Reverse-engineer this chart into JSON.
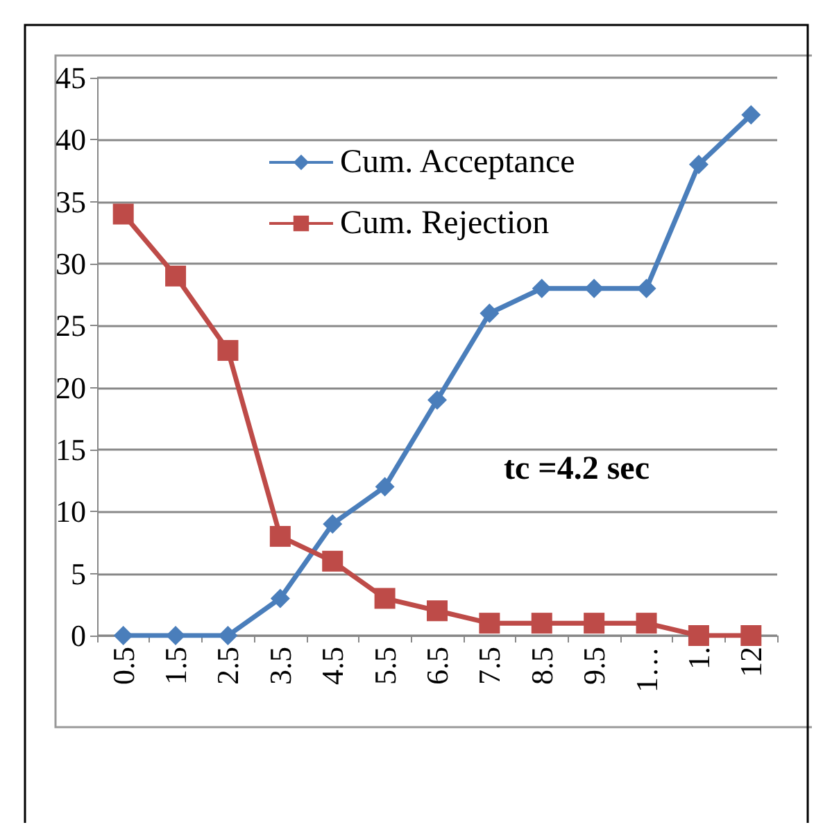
{
  "chart_data": {
    "type": "line",
    "categories": [
      "0.5",
      "1.5",
      "2.5",
      "3.5",
      "4.5",
      "5.5",
      "6.5",
      "7.5",
      "8.5",
      "9.5",
      "1…",
      "1.",
      "12"
    ],
    "series": [
      {
        "name": "Cum. Acceptance",
        "color": "#4a7ebb",
        "marker": "diamond",
        "values": [
          0,
          0,
          0,
          3,
          9,
          12,
          19,
          26,
          28,
          28,
          28,
          38,
          42
        ]
      },
      {
        "name": "Cum. Rejection",
        "color": "#be4b48",
        "marker": "square",
        "values": [
          34,
          29,
          23,
          8,
          6,
          3,
          2,
          1,
          1,
          1,
          1,
          0,
          0
        ]
      }
    ],
    "ylim": [
      0,
      45
    ],
    "yticks": [
      0,
      5,
      10,
      15,
      20,
      25,
      30,
      35,
      40,
      45
    ],
    "grid": "y",
    "legend": "top",
    "line_style": "solid",
    "annotations": [
      "tc =4.2 sec"
    ]
  }
}
